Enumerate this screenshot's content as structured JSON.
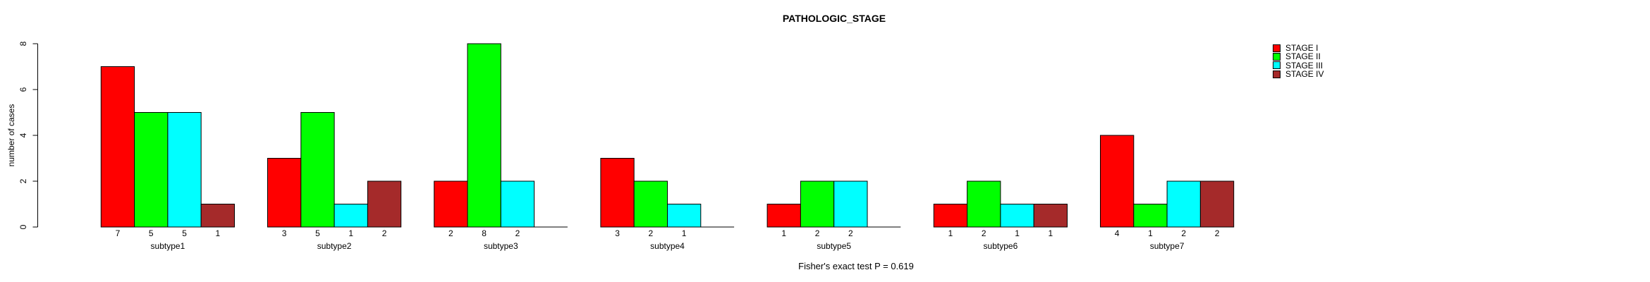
{
  "chart_data": {
    "type": "bar",
    "title": "PATHOLOGIC_STAGE",
    "xlabel": "",
    "ylabel": "number of cases",
    "footnote": "Fisher's exact test P = 0.619",
    "categories": [
      "subtype1",
      "subtype2",
      "subtype3",
      "subtype4",
      "subtype5",
      "subtype6",
      "subtype7"
    ],
    "series": [
      {
        "name": "STAGE I",
        "color": "#FF0000",
        "values": [
          7,
          3,
          2,
          3,
          1,
          1,
          4
        ]
      },
      {
        "name": "STAGE II",
        "color": "#00FF00",
        "values": [
          5,
          5,
          8,
          2,
          2,
          2,
          1
        ]
      },
      {
        "name": "STAGE III",
        "color": "#00FFFF",
        "values": [
          5,
          1,
          2,
          1,
          2,
          1,
          2
        ]
      },
      {
        "name": "STAGE IV",
        "color": "#A52A2A",
        "values": [
          1,
          2,
          0,
          0,
          0,
          1,
          2
        ]
      }
    ],
    "bar_value_labels_shown_for_zero": false,
    "ylim": [
      0,
      8
    ],
    "yticks": [
      0,
      2,
      4,
      6,
      8
    ],
    "grid": false,
    "legend_position": "top-right",
    "bar_border_color": "#000000",
    "background_color": "#FFFFFF"
  }
}
